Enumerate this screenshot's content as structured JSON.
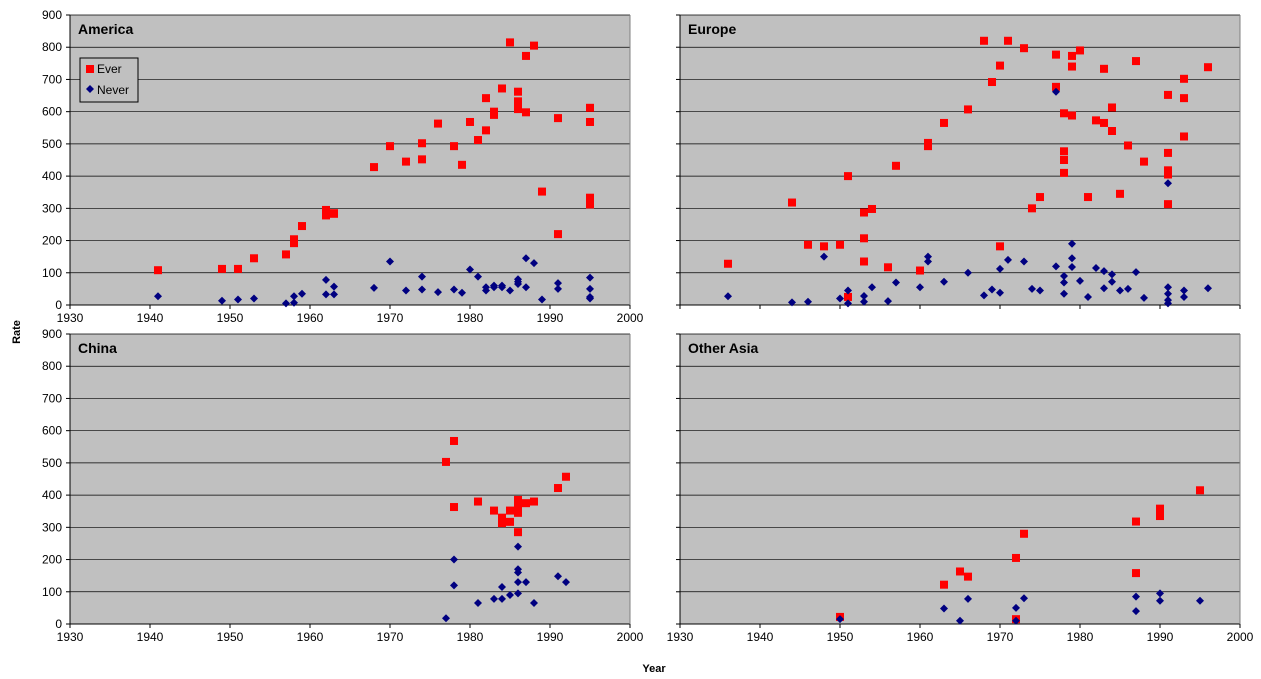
{
  "axes": {
    "xlabel": "Year",
    "ylabel": "Rate"
  },
  "legend": {
    "ever": "Ever",
    "never": "Never"
  },
  "colors": {
    "ever": "#ff0000",
    "never": "#000080",
    "plot_bg": "#c0c0c0",
    "grid": "#000000"
  },
  "chart_data": [
    {
      "type": "scatter",
      "title": "America",
      "xlim": [
        1930,
        2000
      ],
      "ylim": [
        0,
        900
      ],
      "xticks": [
        1930,
        1940,
        1950,
        1960,
        1970,
        1980,
        1990,
        2000
      ],
      "yticks": [
        0,
        100,
        200,
        300,
        400,
        500,
        600,
        700,
        800,
        900
      ],
      "grid": true,
      "legend_position": "top-left",
      "series": [
        {
          "name": "Ever",
          "marker": "square",
          "points": [
            [
              1941,
              108
            ],
            [
              1949,
              112
            ],
            [
              1951,
              112
            ],
            [
              1953,
              145
            ],
            [
              1957,
              157
            ],
            [
              1958,
              192
            ],
            [
              1958,
              204
            ],
            [
              1959,
              245
            ],
            [
              1962,
              278
            ],
            [
              1962,
              295
            ],
            [
              1963,
              283
            ],
            [
              1963,
              285
            ],
            [
              1968,
              428
            ],
            [
              1970,
              493
            ],
            [
              1972,
              445
            ],
            [
              1974,
              452
            ],
            [
              1974,
              502
            ],
            [
              1976,
              563
            ],
            [
              1978,
              493
            ],
            [
              1979,
              435
            ],
            [
              1980,
              568
            ],
            [
              1981,
              512
            ],
            [
              1982,
              542
            ],
            [
              1982,
              642
            ],
            [
              1983,
              590
            ],
            [
              1983,
              600
            ],
            [
              1984,
              672
            ],
            [
              1985,
              815
            ],
            [
              1986,
              662
            ],
            [
              1986,
              632
            ],
            [
              1986,
              620
            ],
            [
              1986,
              608
            ],
            [
              1987,
              598
            ],
            [
              1987,
              773
            ],
            [
              1988,
              805
            ],
            [
              1989,
              352
            ],
            [
              1991,
              580
            ],
            [
              1991,
              220
            ],
            [
              1995,
              612
            ],
            [
              1995,
              568
            ],
            [
              1995,
              333
            ],
            [
              1995,
              312
            ]
          ]
        },
        {
          "name": "Never",
          "marker": "diamond",
          "points": [
            [
              1941,
              27
            ],
            [
              1949,
              13
            ],
            [
              1951,
              17
            ],
            [
              1953,
              20
            ],
            [
              1957,
              5
            ],
            [
              1958,
              7
            ],
            [
              1958,
              27
            ],
            [
              1959,
              35
            ],
            [
              1962,
              33
            ],
            [
              1962,
              78
            ],
            [
              1963,
              33
            ],
            [
              1963,
              57
            ],
            [
              1968,
              53
            ],
            [
              1970,
              135
            ],
            [
              1972,
              45
            ],
            [
              1974,
              48
            ],
            [
              1974,
              88
            ],
            [
              1976,
              40
            ],
            [
              1978,
              48
            ],
            [
              1979,
              38
            ],
            [
              1980,
              110
            ],
            [
              1981,
              88
            ],
            [
              1982,
              45
            ],
            [
              1982,
              55
            ],
            [
              1983,
              60
            ],
            [
              1983,
              55
            ],
            [
              1984,
              55
            ],
            [
              1984,
              60
            ],
            [
              1985,
              45
            ],
            [
              1986,
              65
            ],
            [
              1986,
              72
            ],
            [
              1986,
              80
            ],
            [
              1987,
              55
            ],
            [
              1987,
              145
            ],
            [
              1988,
              130
            ],
            [
              1989,
              17
            ],
            [
              1991,
              50
            ],
            [
              1991,
              68
            ],
            [
              1995,
              85
            ],
            [
              1995,
              50
            ],
            [
              1995,
              25
            ],
            [
              1995,
              20
            ]
          ]
        }
      ]
    },
    {
      "type": "scatter",
      "title": "Europe",
      "xlim": [
        1930,
        2000
      ],
      "ylim": [
        0,
        900
      ],
      "xticks": [
        1930,
        1940,
        1950,
        1960,
        1970,
        1980,
        1990,
        2000
      ],
      "yticks": [
        0,
        100,
        200,
        300,
        400,
        500,
        600,
        700,
        800,
        900
      ],
      "grid": true,
      "series": [
        {
          "name": "Ever",
          "marker": "square",
          "points": [
            [
              1936,
              128
            ],
            [
              1944,
              318
            ],
            [
              1946,
              187
            ],
            [
              1948,
              182
            ],
            [
              1950,
              187
            ],
            [
              1951,
              400
            ],
            [
              1951,
              25
            ],
            [
              1953,
              287
            ],
            [
              1953,
              207
            ],
            [
              1953,
              135
            ],
            [
              1954,
              298
            ],
            [
              1956,
              117
            ],
            [
              1957,
              432
            ],
            [
              1960,
              107
            ],
            [
              1961,
              493
            ],
            [
              1961,
              503
            ],
            [
              1963,
              565
            ],
            [
              1966,
              607
            ],
            [
              1968,
              820
            ],
            [
              1969,
              692
            ],
            [
              1970,
              743
            ],
            [
              1970,
              182
            ],
            [
              1971,
              820
            ],
            [
              1973,
              797
            ],
            [
              1974,
              300
            ],
            [
              1975,
              335
            ],
            [
              1977,
              777
            ],
            [
              1977,
              677
            ],
            [
              1978,
              595
            ],
            [
              1978,
              477
            ],
            [
              1978,
              450
            ],
            [
              1978,
              410
            ],
            [
              1979,
              773
            ],
            [
              1979,
              740
            ],
            [
              1979,
              588
            ],
            [
              1980,
              790
            ],
            [
              1981,
              335
            ],
            [
              1982,
              573
            ],
            [
              1983,
              565
            ],
            [
              1983,
              733
            ],
            [
              1984,
              613
            ],
            [
              1984,
              540
            ],
            [
              1985,
              345
            ],
            [
              1986,
              495
            ],
            [
              1987,
              757
            ],
            [
              1988,
              445
            ],
            [
              1991,
              652
            ],
            [
              1991,
              472
            ],
            [
              1991,
              418
            ],
            [
              1991,
              405
            ],
            [
              1991,
              313
            ],
            [
              1993,
              702
            ],
            [
              1993,
              642
            ],
            [
              1993,
              523
            ],
            [
              1996,
              738
            ]
          ]
        },
        {
          "name": "Never",
          "marker": "diamond",
          "points": [
            [
              1936,
              27
            ],
            [
              1944,
              8
            ],
            [
              1946,
              10
            ],
            [
              1948,
              150
            ],
            [
              1950,
              20
            ],
            [
              1951,
              45
            ],
            [
              1951,
              5
            ],
            [
              1953,
              28
            ],
            [
              1953,
              10
            ],
            [
              1954,
              55
            ],
            [
              1956,
              12
            ],
            [
              1957,
              70
            ],
            [
              1960,
              55
            ],
            [
              1961,
              150
            ],
            [
              1961,
              135
            ],
            [
              1963,
              72
            ],
            [
              1966,
              100
            ],
            [
              1968,
              30
            ],
            [
              1969,
              48
            ],
            [
              1970,
              112
            ],
            [
              1970,
              38
            ],
            [
              1971,
              140
            ],
            [
              1973,
              135
            ],
            [
              1974,
              50
            ],
            [
              1975,
              45
            ],
            [
              1977,
              662
            ],
            [
              1977,
              120
            ],
            [
              1978,
              90
            ],
            [
              1978,
              70
            ],
            [
              1978,
              35
            ],
            [
              1979,
              190
            ],
            [
              1979,
              145
            ],
            [
              1979,
              118
            ],
            [
              1980,
              75
            ],
            [
              1981,
              25
            ],
            [
              1982,
              115
            ],
            [
              1983,
              52
            ],
            [
              1983,
              105
            ],
            [
              1984,
              95
            ],
            [
              1984,
              72
            ],
            [
              1985,
              45
            ],
            [
              1986,
              50
            ],
            [
              1987,
              102
            ],
            [
              1988,
              22
            ],
            [
              1991,
              378
            ],
            [
              1991,
              55
            ],
            [
              1991,
              35
            ],
            [
              1991,
              15
            ],
            [
              1991,
              5
            ],
            [
              1993,
              45
            ],
            [
              1993,
              25
            ],
            [
              1996,
              52
            ]
          ]
        }
      ]
    },
    {
      "type": "scatter",
      "title": "China",
      "xlim": [
        1930,
        2000
      ],
      "ylim": [
        0,
        900
      ],
      "xticks": [
        1930,
        1940,
        1950,
        1960,
        1970,
        1980,
        1990,
        2000
      ],
      "yticks": [
        0,
        100,
        200,
        300,
        400,
        500,
        600,
        700,
        800,
        900
      ],
      "grid": true,
      "series": [
        {
          "name": "Ever",
          "marker": "square",
          "points": [
            [
              1977,
              503
            ],
            [
              1978,
              568
            ],
            [
              1978,
              363
            ],
            [
              1981,
              380
            ],
            [
              1983,
              352
            ],
            [
              1984,
              330
            ],
            [
              1984,
              313
            ],
            [
              1985,
              352
            ],
            [
              1985,
              317
            ],
            [
              1986,
              385
            ],
            [
              1986,
              365
            ],
            [
              1986,
              345
            ],
            [
              1986,
              285
            ],
            [
              1987,
              375
            ],
            [
              1988,
              380
            ],
            [
              1991,
              422
            ],
            [
              1992,
              457
            ]
          ]
        },
        {
          "name": "Never",
          "marker": "diamond",
          "points": [
            [
              1977,
              18
            ],
            [
              1978,
              200
            ],
            [
              1978,
              120
            ],
            [
              1981,
              65
            ],
            [
              1983,
              78
            ],
            [
              1984,
              115
            ],
            [
              1984,
              78
            ],
            [
              1985,
              90
            ],
            [
              1986,
              240
            ],
            [
              1986,
              170
            ],
            [
              1986,
              160
            ],
            [
              1986,
              130
            ],
            [
              1986,
              95
            ],
            [
              1987,
              130
            ],
            [
              1988,
              65
            ],
            [
              1991,
              148
            ],
            [
              1992,
              130
            ]
          ]
        }
      ]
    },
    {
      "type": "scatter",
      "title": "Other Asia",
      "xlim": [
        1930,
        2000
      ],
      "ylim": [
        0,
        900
      ],
      "xticks": [
        1930,
        1940,
        1950,
        1960,
        1970,
        1980,
        1990,
        2000
      ],
      "yticks": [
        0,
        100,
        200,
        300,
        400,
        500,
        600,
        700,
        800,
        900
      ],
      "grid": true,
      "series": [
        {
          "name": "Ever",
          "marker": "square",
          "points": [
            [
              1950,
              22
            ],
            [
              1963,
              122
            ],
            [
              1965,
              163
            ],
            [
              1966,
              147
            ],
            [
              1972,
              205
            ],
            [
              1972,
              15
            ],
            [
              1973,
              280
            ],
            [
              1987,
              318
            ],
            [
              1987,
              158
            ],
            [
              1990,
              358
            ],
            [
              1990,
              335
            ],
            [
              1995,
              415
            ]
          ]
        },
        {
          "name": "Never",
          "marker": "diamond",
          "points": [
            [
              1950,
              15
            ],
            [
              1963,
              48
            ],
            [
              1965,
              10
            ],
            [
              1966,
              78
            ],
            [
              1972,
              50
            ],
            [
              1972,
              10
            ],
            [
              1973,
              80
            ],
            [
              1987,
              85
            ],
            [
              1987,
              40
            ],
            [
              1990,
              95
            ],
            [
              1990,
              72
            ],
            [
              1995,
              72
            ]
          ]
        }
      ]
    }
  ]
}
